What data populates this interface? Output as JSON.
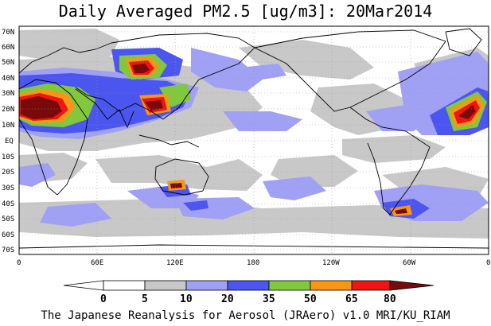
{
  "title": "Daily Averaged PM2.5 [ug/m3]: 20Mar2014",
  "footer": "The Japanese Reanalysis for Aerosol (JRAero) v1.0 MRI/KU_RIAM",
  "map": {
    "lat_labels": [
      "70N",
      "60N",
      "50N",
      "40N",
      "30N",
      "20N",
      "10N",
      "EQ",
      "10S",
      "20S",
      "30S",
      "40S",
      "50S",
      "60S",
      "70S"
    ],
    "lon_labels": [
      "0",
      "60E",
      "120E",
      "180",
      "120W",
      "60W",
      "0"
    ]
  },
  "colorbar": {
    "labels": [
      "0",
      "5",
      "10",
      "20",
      "35",
      "50",
      "65",
      "80"
    ],
    "colors": [
      "#ffffff",
      "#c8c8c8",
      "#a0a0f5",
      "#4b55f0",
      "#82c83c",
      "#fa9614",
      "#f01414",
      "#780a0a"
    ]
  }
}
